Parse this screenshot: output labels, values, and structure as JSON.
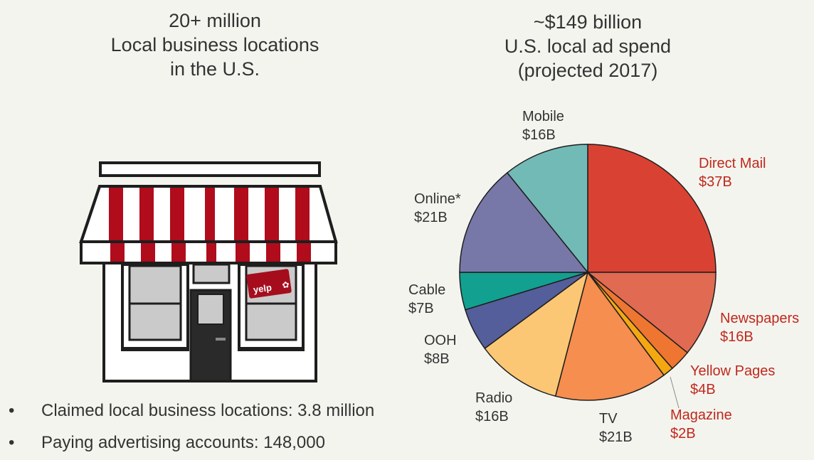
{
  "left": {
    "headline": [
      "20+ million",
      "Local business locations",
      "in the U.S."
    ],
    "sign_text": "yelp",
    "bullets": [
      "Claimed local business locations: 3.8 million",
      "Paying advertising accounts: 148,000"
    ],
    "bullet_symbol": "•"
  },
  "right": {
    "headline": [
      "~$149 billion",
      "U.S. local ad spend",
      "(projected 2017)"
    ]
  },
  "chart_data": {
    "type": "pie",
    "unit": "billion USD",
    "slices": [
      {
        "name": "Direct Mail",
        "label": "$37B",
        "value": 37,
        "color": "#d94232",
        "label_color": "#c0281c"
      },
      {
        "name": "Newspapers",
        "label": "$16B",
        "value": 16,
        "color": "#e06a52",
        "label_color": "#c0281c"
      },
      {
        "name": "Yellow Pages",
        "label": "$4B",
        "value": 4,
        "color": "#ef7630",
        "label_color": "#c0281c"
      },
      {
        "name": "Magazine",
        "label": "$2B",
        "value": 2,
        "color": "#f5a712",
        "label_color": "#c0281c"
      },
      {
        "name": "TV",
        "label": "$21B",
        "value": 21,
        "color": "#f58e4e",
        "label_color": "#333333"
      },
      {
        "name": "Radio",
        "label": "$16B",
        "value": 16,
        "color": "#fcc775",
        "label_color": "#333333"
      },
      {
        "name": "OOH",
        "label": "$8B",
        "value": 8,
        "color": "#545e9a",
        "label_color": "#333333"
      },
      {
        "name": "Cable",
        "label": "$7B",
        "value": 7,
        "color": "#12a090",
        "label_color": "#333333"
      },
      {
        "name": "Online*",
        "label": "$21B",
        "value": 21,
        "color": "#7778a8",
        "label_color": "#333333"
      },
      {
        "name": "Mobile",
        "label": "$16B",
        "value": 16,
        "color": "#72bab6",
        "label_color": "#333333"
      }
    ]
  }
}
